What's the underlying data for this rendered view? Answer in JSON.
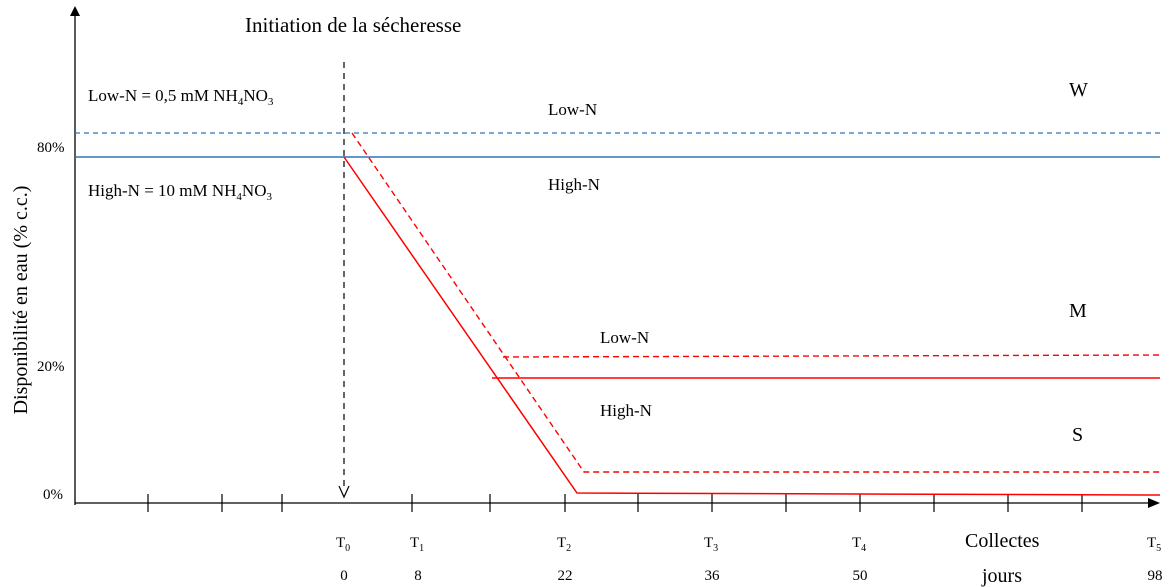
{
  "title": "Initiation de la sécheresse",
  "y_axis_label": "Disponibilité en eau (% c.c.)",
  "y_ticks": [
    "80%",
    "20%",
    "0%"
  ],
  "legend": {
    "low_n": {
      "prefix": "Low-N = 0,5 mM NH",
      "sub1": "4",
      "mid": "NO",
      "sub2": "3"
    },
    "high_n": {
      "prefix": "High-N = 10 mM NH",
      "sub1": "4",
      "mid": "NO",
      "sub2": "3"
    }
  },
  "zone_labels": {
    "well_watered": "W",
    "moderate": "M",
    "severe": "S"
  },
  "line_labels": {
    "w_low": "Low-N",
    "w_high": "High-N",
    "m_low": "Low-N",
    "m_high": "High-N"
  },
  "collection_points": [
    {
      "label": "T",
      "sub": "0",
      "day": "0"
    },
    {
      "label": "T",
      "sub": "1",
      "day": "8"
    },
    {
      "label": "T",
      "sub": "2",
      "day": "22"
    },
    {
      "label": "T",
      "sub": "3",
      "day": "36"
    },
    {
      "label": "T",
      "sub": "4",
      "day": "50"
    },
    {
      "label": "T",
      "sub": "5",
      "day": "98"
    }
  ],
  "x_axis_label_top": "Collectes",
  "x_axis_label_bottom": "jours",
  "colors": {
    "well_watered": "#2e75b6",
    "drought": "#ff0000",
    "axis": "#000000"
  }
}
